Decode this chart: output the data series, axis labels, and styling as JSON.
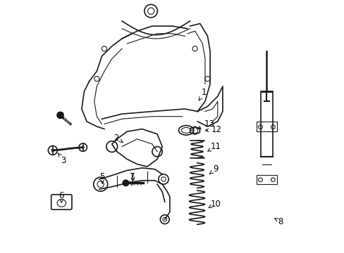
{
  "title": "",
  "bg_color": "#ffffff",
  "line_color": "#1a1a1a",
  "label_color": "#000000",
  "figsize": [
    4.89,
    3.6
  ],
  "dpi": 100
}
